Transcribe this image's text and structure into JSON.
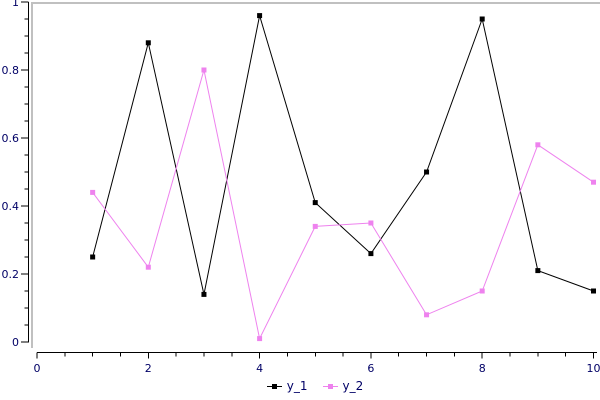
{
  "chart_data": {
    "type": "line",
    "x": [
      1,
      2,
      3,
      4,
      5,
      6,
      7,
      8,
      9,
      10
    ],
    "series": [
      {
        "name": "y_1",
        "color": "#000000",
        "marker": "square",
        "values": [
          0.25,
          0.88,
          0.14,
          0.96,
          0.41,
          0.26,
          0.5,
          0.95,
          0.21,
          0.15
        ]
      },
      {
        "name": "y_2",
        "color": "#EE82EE",
        "marker": "square",
        "values": [
          0.44,
          0.22,
          0.8,
          0.01,
          0.34,
          0.35,
          0.08,
          0.15,
          0.58,
          0.47
        ]
      }
    ],
    "title": "",
    "xlabel": "",
    "ylabel": "",
    "xlim": [
      0,
      10
    ],
    "ylim": [
      0,
      1
    ],
    "x_major_ticks": [
      0,
      2,
      4,
      6,
      8,
      10
    ],
    "x_tick_labels": [
      "0",
      "2",
      "4",
      "6",
      "8",
      "10"
    ],
    "x_minor_step": 0.5,
    "y_major_ticks": [
      0,
      0.2,
      0.4,
      0.6,
      0.8,
      1
    ],
    "y_tick_labels": [
      "0",
      "0.2",
      "0.4",
      "0.6",
      "0.8",
      "1"
    ],
    "y_minor_step": 0.05,
    "grid": false,
    "legend_position": "bottom-center",
    "legend_labels": [
      "y_1",
      "y_2"
    ]
  },
  "colors": {
    "background": "#FFFFFF",
    "axis_line": "#000000",
    "tick_label": "#000066",
    "legend_text": "#000066",
    "frame_border": "#C0C0C0",
    "series_1": "#000000",
    "series_2": "#EE82EE"
  }
}
